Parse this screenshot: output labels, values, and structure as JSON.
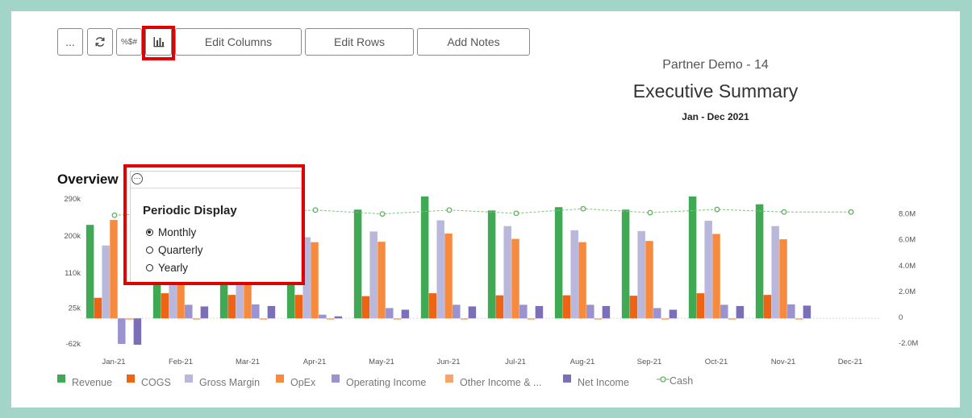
{
  "toolbar": {
    "more_label": "...",
    "refresh_icon": "refresh-icon",
    "format_label": "%$#",
    "chart_icon": "bar-chart-icon",
    "edit_columns_label": "Edit Columns",
    "edit_rows_label": "Edit Rows",
    "add_notes_label": "Add Notes"
  },
  "header": {
    "company": "Partner Demo - 14",
    "report_title": "Executive Summary",
    "period": "Jan - Dec 2021"
  },
  "section_title": "Overview",
  "popup": {
    "more_icon": "more-icon",
    "title": "Periodic Display",
    "options": [
      {
        "label": "Monthly",
        "selected": true
      },
      {
        "label": "Quarterly",
        "selected": false
      },
      {
        "label": "Yearly",
        "selected": false
      }
    ]
  },
  "colors": {
    "Revenue": "#3fa954",
    "COGS": "#ec6414",
    "Gross Margin": "#b9b8dc",
    "OpEx": "#f68a3e",
    "Operating Income": "#9a93cf",
    "Other Income & ...": "#f9a56a",
    "Net Income": "#7c6fb9",
    "Cash": "#7cc47c",
    "highlight": "#e00000"
  },
  "chart_data": {
    "type": "bar",
    "categories": [
      "Jan-21",
      "Feb-21",
      "Mar-21",
      "Apr-21",
      "May-21",
      "Jun-21",
      "Jul-21",
      "Aug-21",
      "Sep-21",
      "Oct-21",
      "Nov-21",
      "Dec-21"
    ],
    "left_ticks": [
      "290k",
      "200k",
      "110k",
      "25k",
      "-62k"
    ],
    "left_tick_values": [
      290000,
      200000,
      110000,
      25000,
      -62000
    ],
    "left_range": [
      -62000,
      290000
    ],
    "right_ticks": [
      "8.0M",
      "6.0M",
      "4.0M",
      "2.0M",
      "0",
      "-2.0M"
    ],
    "right_tick_values": [
      8000000,
      6000000,
      4000000,
      2000000,
      0,
      -2000000
    ],
    "right_range": [
      -2250000,
      9100000
    ],
    "legend_position": "bottom",
    "series": [
      {
        "name": "Revenue",
        "values": [
          227000,
          140000,
          141000,
          194000,
          264000,
          296000,
          262000,
          270000,
          264000,
          296000,
          277000,
          0
        ]
      },
      {
        "name": "COGS",
        "values": [
          50000,
          61000,
          57000,
          57000,
          54000,
          61000,
          56000,
          56000,
          55000,
          61000,
          57000,
          0
        ]
      },
      {
        "name": "Gross Margin",
        "values": [
          177000,
          118000,
          115000,
          197000,
          211000,
          238000,
          224000,
          214000,
          212000,
          237000,
          224000,
          0
        ]
      },
      {
        "name": "OpEx",
        "values": [
          239000,
          93000,
          89000,
          185000,
          186000,
          206000,
          193000,
          185000,
          188000,
          205000,
          192000,
          0
        ]
      },
      {
        "name": "Operating Income",
        "values": [
          -62000,
          33000,
          34000,
          9000,
          25000,
          33000,
          33000,
          33000,
          25000,
          33000,
          34000,
          0
        ]
      },
      {
        "name": "Other Income & ...",
        "values": [
          -3000,
          -3000,
          -3000,
          -3000,
          -3000,
          -3000,
          -3000,
          -3000,
          -3000,
          -3000,
          -3000,
          0
        ]
      },
      {
        "name": "Net Income",
        "values": [
          -64000,
          29000,
          30000,
          5000,
          21000,
          29000,
          30000,
          30000,
          21000,
          30000,
          31000,
          0
        ]
      }
    ],
    "line_series": {
      "name": "Cash",
      "axis": "right",
      "values": [
        7900000,
        8150000,
        8100000,
        8300000,
        8000000,
        8300000,
        8050000,
        8400000,
        8100000,
        8350000,
        8150000,
        8150000
      ]
    }
  }
}
